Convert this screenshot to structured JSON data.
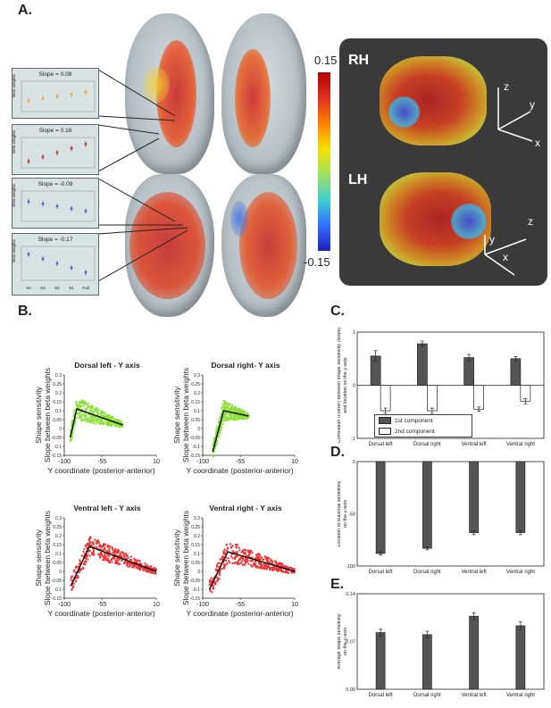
{
  "panel_letters": {
    "a": "A.",
    "b": "B.",
    "c": "C.",
    "d": "D.",
    "e": "E."
  },
  "colorbar": {
    "top": "0.15",
    "bottom": "-0.15"
  },
  "hemispheres": {
    "rh": "RH",
    "lh": "LH"
  },
  "axes_3d": {
    "z": "z",
    "y": "y",
    "x": "x"
  },
  "insets": [
    {
      "title": "Slope = 0.08",
      "ylabel": "Beta weights",
      "color": "#f0a040"
    },
    {
      "title": "Slope = 0.16",
      "ylabel": "Beta weights",
      "color": "#c03030"
    },
    {
      "title": "Slope = -0.09",
      "ylabel": "Beta weights",
      "color": "#4060d0"
    },
    {
      "title": "Slope = -0.17",
      "ylabel": "Beta weights",
      "color": "#4060d0"
    }
  ],
  "inset_xticks": [
    "S4",
    "S3",
    "S2",
    "S1",
    "Full"
  ],
  "chart_data": [
    {
      "type": "scatter",
      "title": "Dorsal left - Y axis",
      "xlabel": "Y coordinate (posterior-anterior)",
      "ylabel": "Shape sensitivity\nSlope between beta weights",
      "xlim": [
        -100,
        10
      ],
      "ylim": [
        -0.15,
        0.3
      ],
      "xticks": [
        -100,
        -55,
        10
      ],
      "yticks": [
        -0.15,
        -0.1,
        -0.05,
        0,
        0.05,
        0.1,
        0.15,
        0.2,
        0.25,
        0.3
      ],
      "color": "#8ee03a",
      "fit": [
        [
          -93,
          -0.05
        ],
        [
          -85,
          0.11
        ],
        [
          -30,
          0.02
        ]
      ]
    },
    {
      "type": "scatter",
      "title": "Dorsal right- Y axis",
      "xlabel": "Y coordinate (posterior-anterior)",
      "ylabel": "Shape sensitivity\nSlope between beta weights",
      "xlim": [
        -100,
        10
      ],
      "ylim": [
        -0.15,
        0.3
      ],
      "xticks": [
        -100,
        -55,
        10
      ],
      "yticks": [
        -0.15,
        -0.1,
        -0.05,
        0,
        0.05,
        0.1,
        0.15,
        0.2,
        0.25,
        0.3
      ],
      "color": "#8ee03a",
      "fit": [
        [
          -88,
          -0.13
        ],
        [
          -75,
          0.1
        ],
        [
          -45,
          0.07
        ]
      ]
    },
    {
      "type": "scatter",
      "title": "Ventral left - Y axis",
      "xlabel": "Y coordinate (posterior-anterior)",
      "ylabel": "Shape sensitivity\nSlope between beta weights",
      "xlim": [
        -100,
        10
      ],
      "ylim": [
        -0.15,
        0.3
      ],
      "xticks": [
        -100,
        -55,
        10
      ],
      "yticks": [
        -0.15,
        -0.1,
        -0.05,
        0,
        0.05,
        0.1,
        0.15,
        0.2,
        0.25,
        0.3
      ],
      "color": "#f03030",
      "fit": [
        [
          -92,
          -0.08
        ],
        [
          -70,
          0.14
        ],
        [
          10,
          0.0
        ]
      ]
    },
    {
      "type": "scatter",
      "title": "Ventral right - Y axis",
      "xlabel": "Y coordinate (posterior-anterior)",
      "ylabel": "Shape sensitivity\nSlope between beta weights",
      "xlim": [
        -100,
        10
      ],
      "ylim": [
        -0.15,
        0.3
      ],
      "xticks": [
        -100,
        -55,
        10
      ],
      "yticks": [
        -0.15,
        -0.1,
        -0.05,
        0,
        0.05,
        0.1,
        0.15,
        0.2,
        0.25,
        0.3
      ],
      "color": "#f03030",
      "fit": [
        [
          -92,
          -0.1
        ],
        [
          -70,
          0.11
        ],
        [
          10,
          0.0
        ]
      ]
    },
    {
      "type": "bar",
      "panel": "C",
      "categories": [
        "Dorsal left",
        "Dorsal right",
        "Ventral left",
        "Ventral right"
      ],
      "ylabel": "Correlation (Fisher) between shape sensitivity (slope) and location on the y-axis",
      "ylim": [
        -1,
        1
      ],
      "yticks": [
        -1,
        0,
        1
      ],
      "series": [
        {
          "name": "1st component",
          "values": [
            0.55,
            0.78,
            0.52,
            0.5
          ],
          "errors": [
            0.1,
            0.05,
            0.06,
            0.04
          ],
          "color": "#555555"
        },
        {
          "name": "2nd component",
          "values": [
            -0.48,
            -0.48,
            -0.45,
            -0.3
          ],
          "errors": [
            0.05,
            0.05,
            0.04,
            0.05
          ],
          "color": "#ffffff"
        }
      ]
    },
    {
      "type": "bar",
      "panel": "D",
      "categories": [
        "Dorsal left",
        "Dorsal right",
        "Ventral left",
        "Ventral right"
      ],
      "ylabel": "Location of maximal sensitivity on the y-axis",
      "ylim": [
        -100,
        0
      ],
      "yticks": [
        -100,
        -50,
        0
      ],
      "series": [
        {
          "values": [
            -88,
            -83,
            -68,
            -68
          ],
          "errors": [
            1.5,
            1.5,
            2,
            2
          ],
          "color": "#555555"
        }
      ]
    },
    {
      "type": "bar",
      "panel": "E",
      "categories": [
        "Dorsal left",
        "Dorsal right",
        "Ventral left",
        "Ventral right"
      ],
      "ylabel": "Average shape sensitivity on the y-axis",
      "ylim": [
        0,
        0.14
      ],
      "yticks": [
        "0.00",
        "0.07",
        "0.14"
      ],
      "series": [
        {
          "values": [
            0.083,
            0.08,
            0.107,
            0.093
          ],
          "errors": [
            0.005,
            0.005,
            0.005,
            0.006
          ],
          "color": "#555555"
        }
      ]
    }
  ]
}
